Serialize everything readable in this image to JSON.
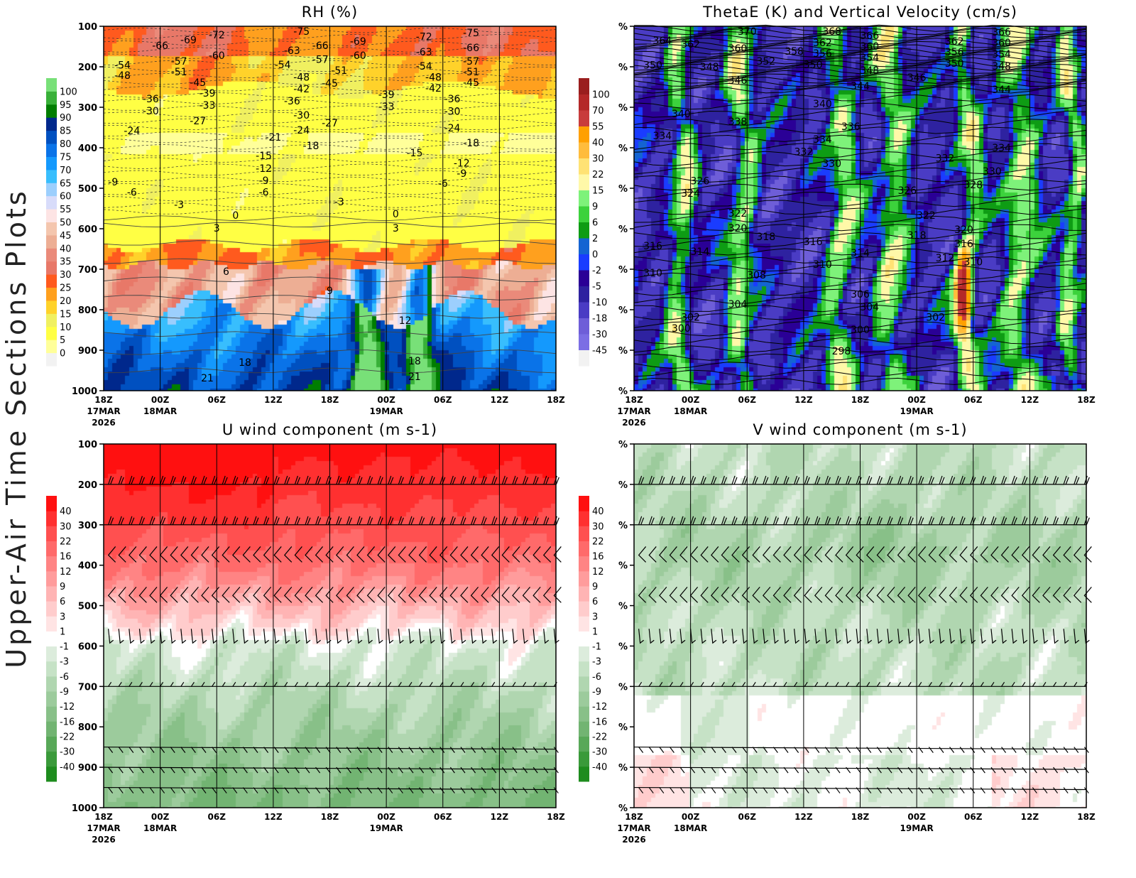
{
  "page_title": "Upper-Air Time Sections Plots",
  "chart_data": [
    {
      "id": "rh",
      "type": "heatmap",
      "title": "RH (%)",
      "overlay": "temperature contours (labelled)",
      "x_ticks": [
        {
          "label": "18Z",
          "sub": "17MAR",
          "sub2": "2026"
        },
        {
          "label": "00Z",
          "sub": "18MAR"
        },
        {
          "label": "06Z"
        },
        {
          "label": "12Z"
        },
        {
          "label": "18Z"
        },
        {
          "label": "00Z",
          "sub": "19MAR"
        },
        {
          "label": "06Z"
        },
        {
          "label": "12Z"
        },
        {
          "label": "18Z"
        }
      ],
      "xlim": [
        "17MAR 18Z",
        "19MAR 18Z"
      ],
      "y_ticks": [
        "100",
        "200",
        "300",
        "400",
        "500",
        "600",
        "700",
        "800",
        "900",
        "1000"
      ],
      "ylim": [
        100,
        1000
      ],
      "y_reversed": false,
      "colorbar": {
        "levels": [
          0,
          5,
          10,
          15,
          20,
          25,
          30,
          35,
          40,
          45,
          50,
          55,
          60,
          65,
          70,
          75,
          80,
          85,
          90,
          95,
          100
        ],
        "colors": [
          "#f2f2f2",
          "#ffff9a",
          "#ffff44",
          "#f0f060",
          "#ffd22a",
          "#ffa01e",
          "#ff5a1e",
          "#e87868",
          "#ea8a7a",
          "#edae94",
          "#f4c6ae",
          "#fde4e4",
          "#d8dcfa",
          "#9ccffd",
          "#38befd",
          "#1499fd",
          "#0a73e8",
          "#0050c0",
          "#00288c",
          "#007d00",
          "#38b038",
          "#78e078"
        ]
      },
      "contour_labels": [
        [
          "-75",
          "18MAR 15Z",
          112
        ],
        [
          "-72",
          "18MAR 06Z",
          121
        ],
        [
          "-69",
          "18MAR 03Z",
          133
        ],
        [
          "-66",
          "18MAR 00Z",
          147
        ],
        [
          "-60",
          "18MAR 06Z",
          172
        ],
        [
          "-57",
          "18MAR 02Z",
          186
        ],
        [
          "-54",
          "17MAR 20Z",
          196
        ],
        [
          "-51",
          "18MAR 02Z",
          212
        ],
        [
          "-48",
          "17MAR 20Z",
          221
        ],
        [
          "-45",
          "18MAR 04Z",
          239
        ],
        [
          "-39",
          "18MAR 05Z",
          265
        ],
        [
          "-36",
          "17MAR 23Z",
          279
        ],
        [
          "-33",
          "18MAR 05Z",
          295
        ],
        [
          "-30",
          "17MAR 23Z",
          309
        ],
        [
          "-27",
          "18MAR 04Z",
          333
        ],
        [
          "-24",
          "17MAR 21Z",
          358
        ],
        [
          "-21",
          "18MAR 12Z",
          374
        ],
        [
          "-18",
          "18MAR 16Z",
          395
        ],
        [
          "-15",
          "18MAR 11Z",
          419
        ],
        [
          "-12",
          "18MAR 11Z",
          451
        ],
        [
          "-9",
          "17MAR 19Z",
          484
        ],
        [
          "-6",
          "17MAR 21Z",
          510
        ],
        [
          "-3",
          "18MAR 02Z",
          540
        ],
        [
          "0",
          "18MAR 08Z",
          567
        ],
        [
          "3",
          "18MAR 06Z",
          598
        ],
        [
          "6",
          "18MAR 07Z",
          705
        ],
        [
          "9",
          "18MAR 18Z",
          753
        ],
        [
          "12",
          "19MAR 02Z",
          826
        ],
        [
          "18",
          "18MAR 09Z",
          930
        ],
        [
          "21",
          "18MAR 05Z",
          968
        ],
        [
          "-72",
          "19MAR 04Z",
          125
        ],
        [
          "-75",
          "19MAR 09Z",
          116
        ],
        [
          "-66",
          "19MAR 09Z",
          153
        ],
        [
          "-63",
          "19MAR 04Z",
          163
        ],
        [
          "-69",
          "18MAR 21Z",
          137
        ],
        [
          "-60",
          "18MAR 21Z",
          172
        ],
        [
          "-57",
          "19MAR 09Z",
          186
        ],
        [
          "-54",
          "19MAR 04Z",
          198
        ],
        [
          "-51",
          "19MAR 09Z",
          212
        ],
        [
          "-48",
          "19MAR 05Z",
          225
        ],
        [
          "-45",
          "19MAR 09Z",
          239
        ],
        [
          "-42",
          "19MAR 05Z",
          253
        ],
        [
          "-36",
          "19MAR 07Z",
          279
        ],
        [
          "-30",
          "19MAR 07Z",
          310
        ],
        [
          "-24",
          "19MAR 07Z",
          351
        ],
        [
          "-18",
          "19MAR 09Z",
          388
        ],
        [
          "-15",
          "19MAR 03Z",
          412
        ],
        [
          "-12",
          "19MAR 08Z",
          438
        ],
        [
          "-9",
          "19MAR 08Z",
          463
        ],
        [
          "-6",
          "19MAR 06Z",
          488
        ],
        [
          "-3",
          "18MAR 19Z",
          533
        ],
        [
          "0",
          "19MAR 01Z",
          563
        ],
        [
          "3",
          "19MAR 01Z",
          598
        ],
        [
          "18",
          "19MAR 03Z",
          926
        ],
        [
          "21",
          "19MAR 03Z",
          965
        ],
        [
          "-63",
          "18MAR 14Z",
          160
        ],
        [
          "-66",
          "18MAR 17Z",
          147
        ],
        [
          "-57",
          "18MAR 17Z",
          182
        ],
        [
          "-54",
          "18MAR 13Z",
          195
        ],
        [
          "-51",
          "18MAR 19Z",
          209
        ],
        [
          "-48",
          "18MAR 15Z",
          225
        ],
        [
          "-45",
          "18MAR 18Z",
          240
        ],
        [
          "-42",
          "18MAR 15Z",
          254
        ],
        [
          "-39",
          "19MAR 00Z",
          268
        ],
        [
          "-36",
          "18MAR 14Z",
          284
        ],
        [
          "-33",
          "19MAR 00Z",
          298
        ],
        [
          "-30",
          "18MAR 15Z",
          319
        ],
        [
          "-27",
          "18MAR 18Z",
          339
        ],
        [
          "-24",
          "18MAR 15Z",
          356
        ],
        [
          "-9",
          "18MAR 11Z",
          481
        ],
        [
          "-6",
          "18MAR 11Z",
          510
        ]
      ]
    },
    {
      "id": "thetae",
      "type": "heatmap",
      "title": "ThetaE (K) and Vertical Velocity (cm/s)",
      "overlay": "ThetaE contours (labelled)",
      "x_ticks": [
        {
          "label": "18Z",
          "sub": "17MAR",
          "sub2": "2026"
        },
        {
          "label": "00Z",
          "sub": "18MAR"
        },
        {
          "label": "06Z"
        },
        {
          "label": "12Z"
        },
        {
          "label": "18Z"
        },
        {
          "label": "00Z",
          "sub": "19MAR"
        },
        {
          "label": "06Z"
        },
        {
          "label": "12Z"
        },
        {
          "label": "18Z"
        }
      ],
      "xlim": [
        "17MAR 18Z",
        "19MAR 18Z"
      ],
      "y_ticks": [
        "%",
        "%",
        "%",
        "%",
        "%",
        "%",
        "%",
        "%",
        "%",
        "%"
      ],
      "ylim": [
        100,
        1000
      ],
      "colorbar": {
        "levels": [
          -45,
          -30,
          -18,
          -10,
          -5,
          -2,
          0,
          2,
          6,
          9,
          15,
          22,
          30,
          40,
          55,
          70,
          100
        ],
        "colors": [
          "#f2f2f2",
          "#7b6ee4",
          "#6e5ed8",
          "#4a3cc4",
          "#2e22a0",
          "#2a0096",
          "#1a3cff",
          "#1464d2",
          "#0e9c14",
          "#3cd23c",
          "#7ef27a",
          "#fff8a8",
          "#ffe274",
          "#ffbc3c",
          "#ffa000",
          "#c83c3c",
          "#b42828",
          "#9a1e1e"
        ]
      },
      "contour_labels": [
        [
          "370",
          "18MAR 06Z",
          112
        ],
        [
          "364",
          "17MAR 21Z",
          135
        ],
        [
          "362",
          "18MAR 00Z",
          144
        ],
        [
          "360",
          "18MAR 05Z",
          154
        ],
        [
          "358",
          "18MAR 11Z",
          161
        ],
        [
          "352",
          "18MAR 08Z",
          186
        ],
        [
          "350",
          "17MAR 20Z",
          196
        ],
        [
          "348",
          "18MAR 02Z",
          200
        ],
        [
          "346",
          "18MAR 05Z",
          233
        ],
        [
          "344",
          "18MAR 18Z",
          247
        ],
        [
          "340",
          "17MAR 23Z",
          316
        ],
        [
          "338",
          "18MAR 05Z",
          335
        ],
        [
          "336",
          "18MAR 17Z",
          347
        ],
        [
          "334",
          "17MAR 21Z",
          370
        ],
        [
          "332",
          "19MAR 03Z",
          425
        ],
        [
          "330",
          "18MAR 15Z",
          439
        ],
        [
          "328",
          "19MAR 06Z",
          491
        ],
        [
          "326",
          "18MAR 01Z",
          482
        ],
        [
          "324",
          "18MAR 00Z",
          512
        ],
        [
          "322",
          "18MAR 05Z",
          561
        ],
        [
          "320",
          "18MAR 05Z",
          598
        ],
        [
          "318",
          "18MAR 08Z",
          619
        ],
        [
          "316",
          "17MAR 20Z",
          642
        ],
        [
          "314",
          "18MAR 01Z",
          656
        ],
        [
          "312",
          "19MAR 03Z",
          672
        ],
        [
          "310",
          "17MAR 20Z",
          709
        ],
        [
          "308",
          "18MAR 07Z",
          714
        ],
        [
          "306",
          "18MAR 18Z",
          761
        ],
        [
          "304",
          "18MAR 05Z",
          786
        ],
        [
          "302",
          "18MAR 00Z",
          818
        ],
        [
          "300",
          "17MAR 23Z",
          846
        ],
        [
          "298",
          "18MAR 16Z",
          902
        ],
        [
          "368",
          "18MAR 15Z",
          112
        ],
        [
          "366",
          "18MAR 19Z",
          123
        ],
        [
          "362",
          "19MAR 04Z",
          137
        ],
        [
          "366",
          "19MAR 09Z",
          114
        ],
        [
          "360",
          "19MAR 09Z",
          140
        ],
        [
          "354",
          "19MAR 09Z",
          168
        ],
        [
          "348",
          "19MAR 09Z",
          198
        ],
        [
          "356",
          "19MAR 04Z",
          163
        ],
        [
          "350",
          "19MAR 04Z",
          191
        ],
        [
          "346",
          "19MAR 00Z",
          226
        ],
        [
          "344",
          "19MAR 09Z",
          256
        ],
        [
          "334",
          "19MAR 09Z",
          400
        ],
        [
          "330",
          "19MAR 08Z",
          458
        ],
        [
          "326",
          "18MAR 23Z",
          505
        ],
        [
          "322",
          "19MAR 01Z",
          567
        ],
        [
          "320",
          "19MAR 05Z",
          602
        ],
        [
          "318",
          "19MAR 00Z",
          616
        ],
        [
          "316",
          "19MAR 05Z",
          637
        ],
        [
          "310",
          "19MAR 06Z",
          682
        ],
        [
          "302",
          "19MAR 02Z",
          818
        ],
        [
          "300",
          "18MAR 18Z",
          849
        ],
        [
          "304",
          "18MAR 19Z",
          793
        ],
        [
          "310",
          "18MAR 14Z",
          688
        ],
        [
          "314",
          "18MAR 18Z",
          660
        ],
        [
          "316",
          "18MAR 13Z",
          632
        ],
        [
          "334",
          "18MAR 14Z",
          379
        ],
        [
          "332",
          "18MAR 12Z",
          410
        ],
        [
          "340",
          "18MAR 14Z",
          291
        ],
        [
          "348",
          "18MAR 19Z",
          209
        ],
        [
          "354",
          "18MAR 19Z",
          177
        ],
        [
          "360",
          "18MAR 19Z",
          149
        ],
        [
          "362",
          "18MAR 14Z",
          140
        ],
        [
          "356",
          "18MAR 14Z",
          167
        ],
        [
          "350",
          "18MAR 13Z",
          195
        ]
      ]
    },
    {
      "id": "u",
      "type": "heatmap",
      "title": "U wind component (m s-1)",
      "overlay": "wind barbs",
      "x_ticks": [
        {
          "label": "18Z",
          "sub": "17MAR",
          "sub2": "2026"
        },
        {
          "label": "00Z",
          "sub": "18MAR"
        },
        {
          "label": "06Z"
        },
        {
          "label": "12Z"
        },
        {
          "label": "18Z"
        },
        {
          "label": "00Z",
          "sub": "19MAR"
        },
        {
          "label": "06Z"
        },
        {
          "label": "12Z"
        },
        {
          "label": "18Z"
        }
      ],
      "xlim": [
        "17MAR 18Z",
        "19MAR 18Z"
      ],
      "y_ticks": [
        "100",
        "200",
        "300",
        "400",
        "500",
        "600",
        "700",
        "800",
        "900",
        "1000"
      ],
      "ylim": [
        100,
        1000
      ],
      "colorbar": {
        "levels": [
          -40,
          -30,
          -22,
          -16,
          -12,
          -9,
          -6,
          -3,
          -1,
          1,
          3,
          6,
          9,
          12,
          16,
          22,
          30,
          40
        ],
        "colors": [
          "#1e8c1e",
          "#3a9a3a",
          "#58a858",
          "#72b472",
          "#88c088",
          "#9ccb9c",
          "#b0d6b0",
          "#c6e2c6",
          "#dcecdc",
          "#ffffff",
          "#ffe4e4",
          "#ffcccc",
          "#ffb4b4",
          "#ff9c9c",
          "#ff8484",
          "#ff6a6a",
          "#ff5050",
          "#ff3030",
          "#ff1010"
        ]
      },
      "barb_levels": [
        200,
        300,
        375,
        475,
        575,
        700,
        850,
        900,
        950
      ]
    },
    {
      "id": "v",
      "type": "heatmap",
      "title": "V wind component (m s-1)",
      "overlay": "wind barbs",
      "x_ticks": [
        {
          "label": "18Z",
          "sub": "17MAR",
          "sub2": "2026"
        },
        {
          "label": "00Z",
          "sub": "18MAR"
        },
        {
          "label": "06Z"
        },
        {
          "label": "12Z"
        },
        {
          "label": "18Z"
        },
        {
          "label": "00Z",
          "sub": "19MAR"
        },
        {
          "label": "06Z"
        },
        {
          "label": "12Z"
        },
        {
          "label": "18Z"
        }
      ],
      "xlim": [
        "17MAR 18Z",
        "19MAR 18Z"
      ],
      "y_ticks": [
        "%",
        "%",
        "%",
        "%",
        "%",
        "%",
        "%",
        "%",
        "%",
        "%"
      ],
      "ylim": [
        100,
        1000
      ],
      "colorbar": {
        "levels": [
          -40,
          -30,
          -22,
          -16,
          -12,
          -9,
          -6,
          -3,
          -1,
          1,
          3,
          6,
          9,
          12,
          16,
          22,
          30,
          40
        ],
        "colors": [
          "#1e8c1e",
          "#3a9a3a",
          "#58a858",
          "#72b472",
          "#88c088",
          "#9ccb9c",
          "#b0d6b0",
          "#c6e2c6",
          "#dcecdc",
          "#ffffff",
          "#ffe4e4",
          "#ffcccc",
          "#ffb4b4",
          "#ff9c9c",
          "#ff8484",
          "#ff6a6a",
          "#ff5050",
          "#ff3030",
          "#ff1010"
        ]
      },
      "barb_levels": [
        200,
        300,
        375,
        475,
        575,
        700,
        850,
        900,
        950
      ]
    }
  ]
}
